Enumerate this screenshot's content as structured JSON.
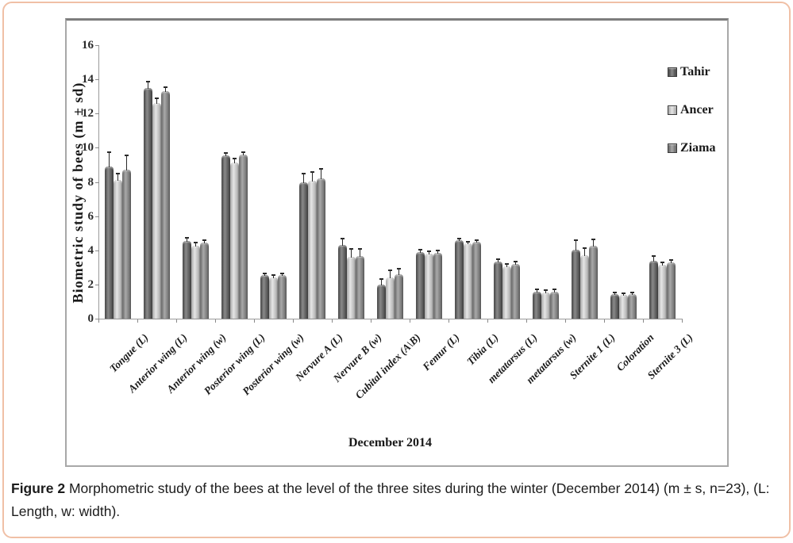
{
  "figure": {
    "caption_label": "Figure 2",
    "caption_text": " Morphometric study of the bees at the level of the three sites during the winter (December 2014) (m ± s, n=23), (L: Length, w: width)."
  },
  "chart_data": {
    "type": "bar",
    "title": "",
    "ylabel": "Biometric study of bees (m ± sd)",
    "xlabel": "December 2014",
    "ylim": [
      0,
      16
    ],
    "ytick_step": 2,
    "grid": false,
    "legend_position": "right-inside",
    "error_bars": true,
    "categories": [
      "Tongue (L)",
      "Anterior wing (L)",
      "Anterior wing (w)",
      "Posterior wing (L)",
      "Posterior wing (w)",
      "Nervure A (L)",
      "Nervure B (w)",
      "Cubital index (A\\B)",
      "Femur (L)",
      "Tibia (L)",
      "metatarsus (L)",
      "metatarsus (w)",
      "Sternite 1 (L)",
      "Coloration",
      "Sternite 3 (L)"
    ],
    "series": [
      {
        "name": "Tahir",
        "color_edge": "#414141",
        "color_mid": "#8a8a8a",
        "values": [
          8.9,
          13.5,
          4.55,
          9.55,
          2.55,
          8.0,
          4.3,
          2.0,
          3.9,
          4.6,
          3.35,
          1.6,
          4.05,
          1.45,
          3.4
        ],
        "errors": [
          0.85,
          0.35,
          0.2,
          0.15,
          0.1,
          0.5,
          0.4,
          0.3,
          0.15,
          0.1,
          0.15,
          0.1,
          0.55,
          0.1,
          0.25
        ]
      },
      {
        "name": "Ancer",
        "color_edge": "#a3a3a3",
        "color_mid": "#e6e6e6",
        "values": [
          8.1,
          12.6,
          4.25,
          9.15,
          2.4,
          8.05,
          3.6,
          2.4,
          3.8,
          4.4,
          3.05,
          1.55,
          3.7,
          1.4,
          3.15
        ],
        "errors": [
          0.4,
          0.3,
          0.2,
          0.2,
          0.15,
          0.55,
          0.5,
          0.45,
          0.15,
          0.1,
          0.15,
          0.1,
          0.45,
          0.1,
          0.15
        ]
      },
      {
        "name": "Ziama",
        "color_edge": "#636363",
        "color_mid": "#a9a9a9",
        "values": [
          8.7,
          13.3,
          4.45,
          9.6,
          2.55,
          8.2,
          3.65,
          2.6,
          3.85,
          4.5,
          3.2,
          1.6,
          4.25,
          1.45,
          3.3
        ],
        "errors": [
          0.85,
          0.25,
          0.15,
          0.15,
          0.1,
          0.55,
          0.45,
          0.3,
          0.15,
          0.1,
          0.15,
          0.1,
          0.4,
          0.1,
          0.15
        ]
      }
    ]
  },
  "colors": {
    "page_border": "#f0c0a6",
    "frame_border": "#a8a8a8",
    "axis": "#9b9b9b",
    "error_bar": "#2a2a2a",
    "text": "#1a1a1a"
  }
}
